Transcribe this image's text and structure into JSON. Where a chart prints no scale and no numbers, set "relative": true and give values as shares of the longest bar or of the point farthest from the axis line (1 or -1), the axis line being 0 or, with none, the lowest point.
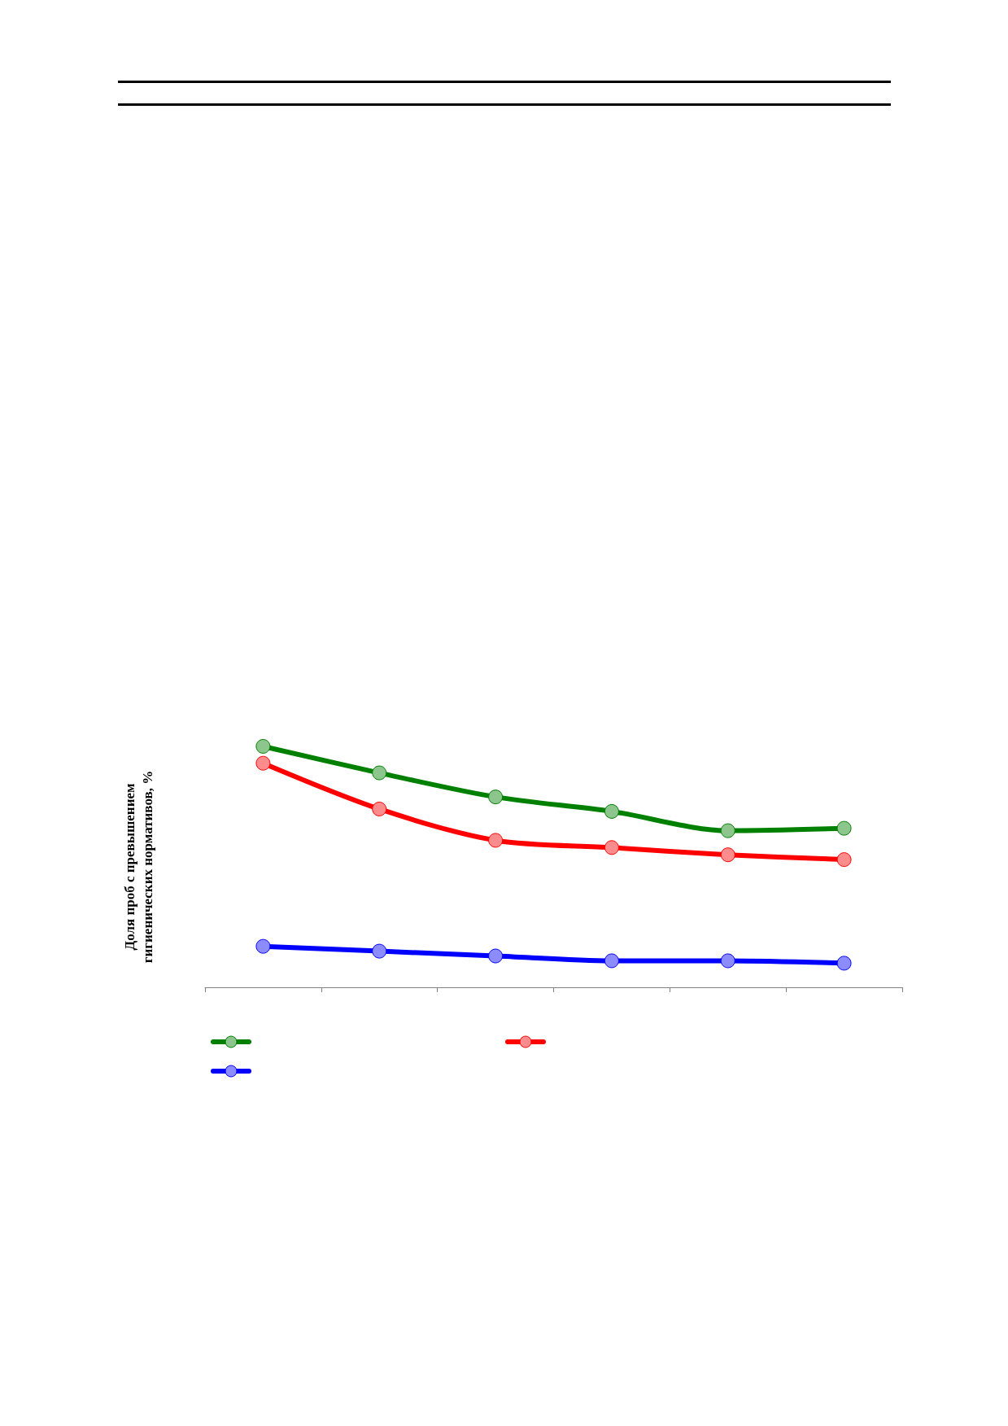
{
  "chart_data": {
    "type": "line",
    "ylabel": "Доля проб с превышением\nгигиенических нормативов, %",
    "relative": true,
    "categories": [
      null,
      null,
      null,
      null,
      null,
      null
    ],
    "series": [
      {
        "color": "#008000",
        "values": [
          1,
          0.89,
          0.79,
          0.73,
          0.65,
          0.66
        ]
      },
      {
        "color": "#ff0000",
        "values": [
          0.93,
          0.74,
          0.61,
          0.58,
          0.55,
          0.53
        ]
      },
      {
        "color": "#0000ff",
        "values": [
          0.17,
          0.15,
          0.13,
          0.11,
          0.11,
          0.1
        ]
      }
    ],
    "marker": "circle",
    "grid": false
  }
}
